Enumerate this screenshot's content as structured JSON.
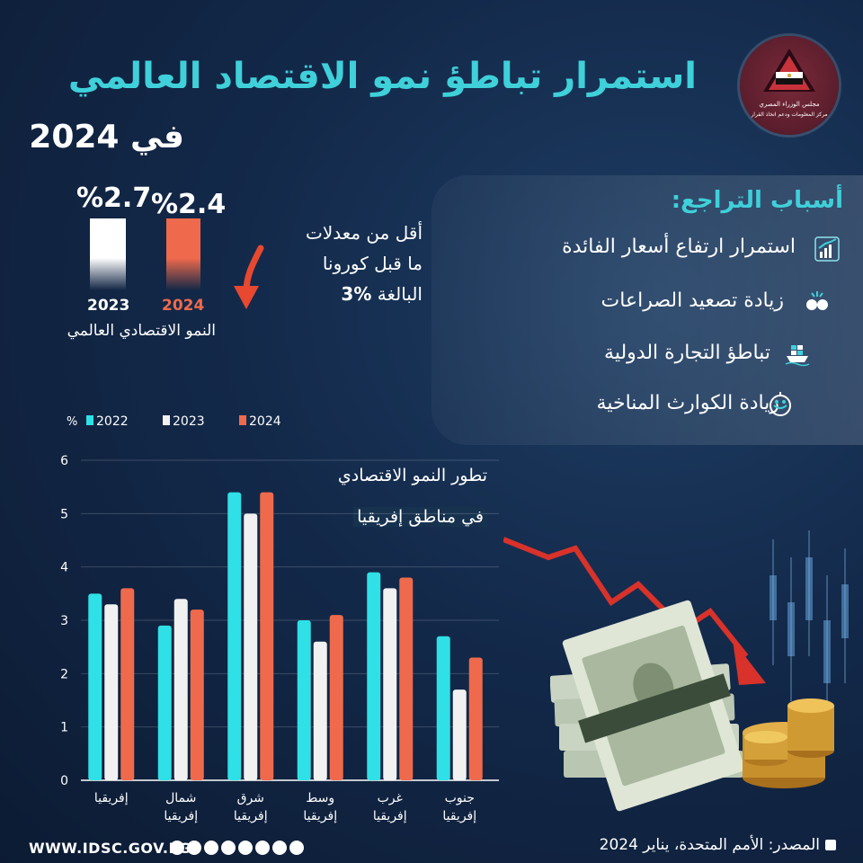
{
  "header": {
    "title": "استمرار تباطؤ نمو الاقتصاد العالمي",
    "year_line": "في 2024"
  },
  "logo": {
    "line1": "مجلس الوزراء المصري",
    "line2": "مركز المعلومات ودعم اتخاذ القرار"
  },
  "global_growth": {
    "values": [
      {
        "year": "2023",
        "label": "%2.7",
        "value": 2.7,
        "color": "#ffffff"
      },
      {
        "year": "2024",
        "label": "%2.4",
        "value": 2.4,
        "color": "#ef6a4c"
      }
    ],
    "label": "النمو الاقتصادي العالمي"
  },
  "note": {
    "line1": "أقل من معدلات",
    "line2": "ما قبل كورونا",
    "line3_prefix": "البالغة ",
    "line3_value": "3%"
  },
  "reasons": {
    "title": "أسباب التراجع:",
    "items": [
      {
        "text": "استمرار ارتفاع أسعار الفائدة",
        "icon": "rising-bars-icon"
      },
      {
        "text": "زيادة تصعيد الصراعات",
        "icon": "conflict-fists-icon"
      },
      {
        "text": "تباطؤ التجارة الدولية",
        "icon": "cargo-ship-icon"
      },
      {
        "text": "زيادة الكوارث المناخية",
        "icon": "climate-disaster-icon"
      }
    ]
  },
  "chart_data": {
    "type": "bar",
    "title": "تطور النمو الاقتصادي",
    "subtitle": "في مناطق إفريقيا",
    "ylabel": "%",
    "ylim": [
      0,
      6
    ],
    "yticks": [
      0,
      1,
      2,
      3,
      4,
      5,
      6
    ],
    "grid": true,
    "legend_position": "top-left",
    "categories": [
      [
        "إفريقيا"
      ],
      [
        "شمال",
        "إفريقيا"
      ],
      [
        "شرق",
        "إفريقيا"
      ],
      [
        "وسط",
        "إفريقيا"
      ],
      [
        "غرب",
        "إفريقيا"
      ],
      [
        "جنوب",
        "إفريقيا"
      ]
    ],
    "series": [
      {
        "name": "2022",
        "color": "#2fe0e6",
        "values": [
          3.5,
          2.9,
          5.4,
          3.0,
          3.9,
          2.7
        ]
      },
      {
        "name": "2023",
        "color": "#f1f1f1",
        "values": [
          3.3,
          3.4,
          5.0,
          2.6,
          3.6,
          1.7
        ]
      },
      {
        "name": "2024",
        "color": "#ef6a4c",
        "values": [
          3.6,
          3.2,
          5.4,
          3.1,
          3.8,
          2.3
        ]
      }
    ]
  },
  "footer": {
    "url": "WWW.IDSC.GOV.EG",
    "source": "المصدر: الأمم المتحدة، يناير 2024"
  }
}
